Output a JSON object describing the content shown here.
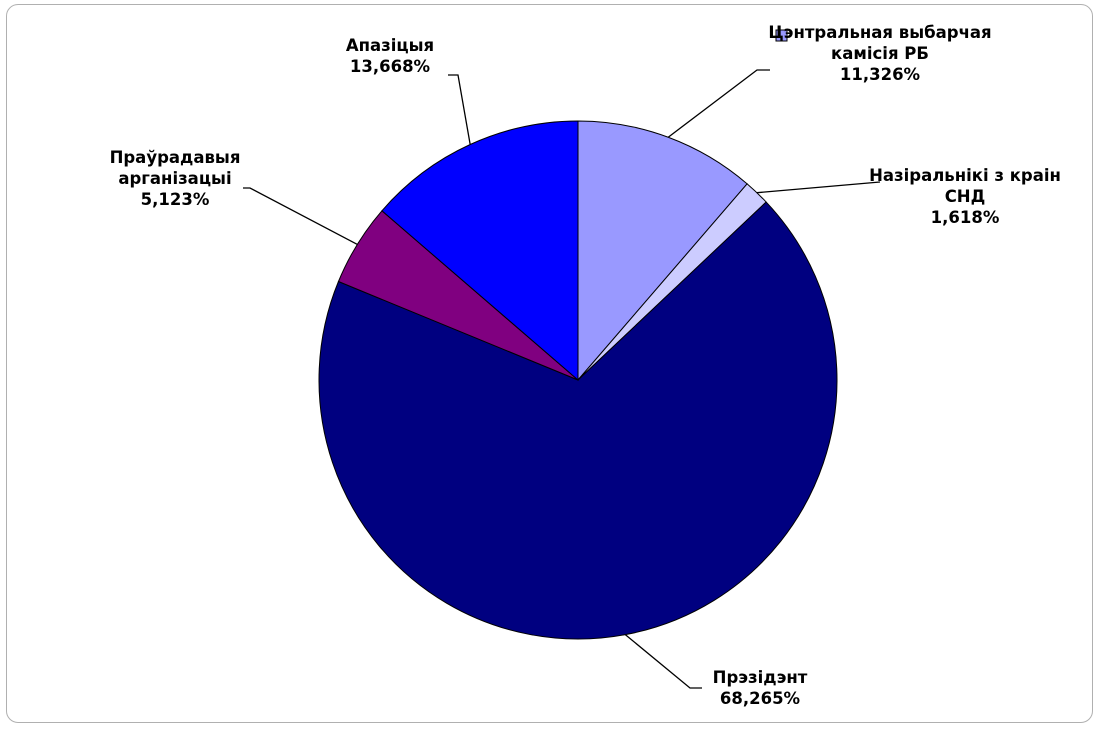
{
  "chart_data": {
    "type": "pie",
    "categories": [
      "Цэнтральная выбарчая камісія РБ",
      "Назіральнікі з краін СНД",
      "Прэзідэнт",
      "Праўрадавыя арганізацыі",
      "Апазіцыя"
    ],
    "values": [
      11.326,
      1.618,
      68.265,
      5.123,
      13.668
    ],
    "value_labels": [
      "11,326%",
      "1,618%",
      "68,265%",
      "5,123%",
      "13,668%"
    ],
    "colors": [
      "#9999ff",
      "#ccccff",
      "#000080",
      "#800080",
      "#0000ff"
    ]
  }
}
